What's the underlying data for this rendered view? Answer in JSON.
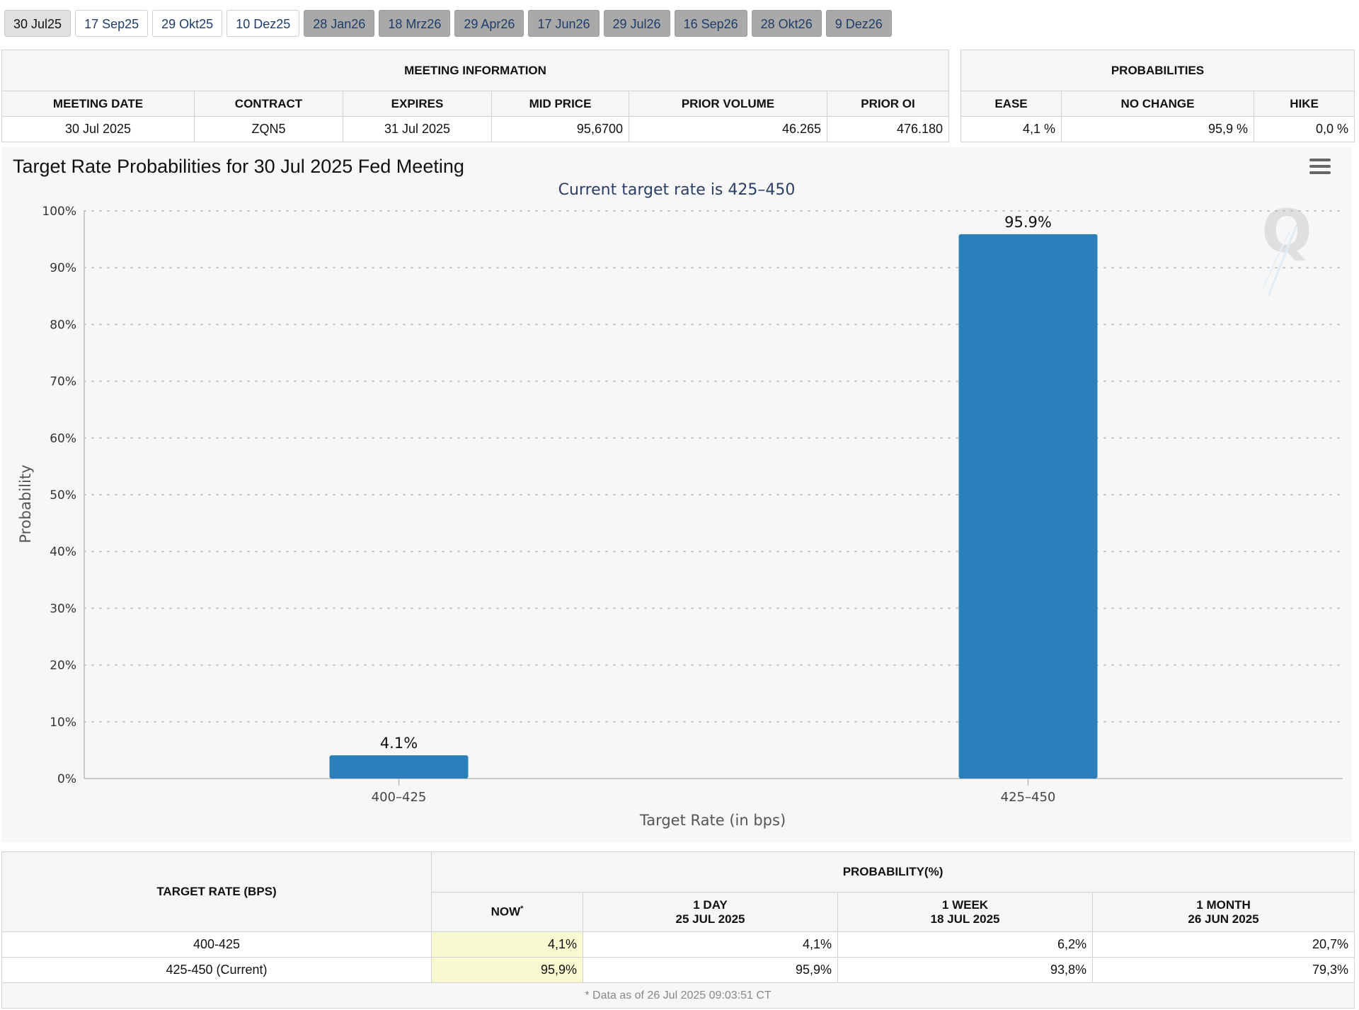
{
  "tabs": [
    {
      "label": "30 Jul25",
      "state": "active"
    },
    {
      "label": "17 Sep25",
      "state": "white"
    },
    {
      "label": "29 Okt25",
      "state": "white"
    },
    {
      "label": "10 Dez25",
      "state": "white"
    },
    {
      "label": "28 Jan26",
      "state": "grey"
    },
    {
      "label": "18 Mrz26",
      "state": "grey"
    },
    {
      "label": "29 Apr26",
      "state": "grey"
    },
    {
      "label": "17 Jun26",
      "state": "grey"
    },
    {
      "label": "29 Jul26",
      "state": "grey"
    },
    {
      "label": "16 Sep26",
      "state": "grey"
    },
    {
      "label": "28 Okt26",
      "state": "grey"
    },
    {
      "label": "9 Dez26",
      "state": "grey"
    }
  ],
  "meeting_info": {
    "header": "MEETING INFORMATION",
    "columns": [
      "MEETING DATE",
      "CONTRACT",
      "EXPIRES",
      "MID PRICE",
      "PRIOR VOLUME",
      "PRIOR OI"
    ],
    "row": [
      "30 Jul 2025",
      "ZQN5",
      "31 Jul 2025",
      "95,6700",
      "46.265",
      "476.180"
    ]
  },
  "probabilities": {
    "header": "PROBABILITIES",
    "columns": [
      "EASE",
      "NO CHANGE",
      "HIKE"
    ],
    "row": [
      "4,1 %",
      "95,9 %",
      "0,0 %"
    ]
  },
  "chart": {
    "title": "Target Rate Probabilities for 30 Jul 2025 Fed Meeting",
    "subtitle": "Current target rate is 425–450",
    "menu_icon": "hamburger-menu-icon",
    "watermark_icon": "q-logo-watermark"
  },
  "chart_data": {
    "type": "bar",
    "categories": [
      "400–425",
      "425–450"
    ],
    "values": [
      4.1,
      95.9
    ],
    "data_labels": [
      "4.1%",
      "95.9%"
    ],
    "xlabel": "Target Rate (in bps)",
    "ylabel": "Probability",
    "ylim": [
      0,
      100
    ],
    "yticks": [
      "0%",
      "10%",
      "20%",
      "30%",
      "40%",
      "50%",
      "60%",
      "70%",
      "80%",
      "90%",
      "100%"
    ],
    "bar_color": "#2a7fba",
    "grid": true
  },
  "bottom_table": {
    "col1_header": "TARGET RATE (BPS)",
    "group_header": "PROBABILITY(%)",
    "now_label": "NOW",
    "now_marker": "*",
    "day_label": "1 DAY",
    "day_date": "25 JUL 2025",
    "week_label": "1 WEEK",
    "week_date": "18 JUL 2025",
    "month_label": "1 MONTH",
    "month_date": "26 JUN 2025",
    "rows": [
      {
        "rate": "400-425",
        "now": "4,1%",
        "day": "4,1%",
        "week": "6,2%",
        "month": "20,7%"
      },
      {
        "rate": "425-450 (Current)",
        "now": "95,9%",
        "day": "95,9%",
        "week": "93,8%",
        "month": "79,3%"
      }
    ],
    "footnote": "* Data as of 26 Jul 2025 09:03:51 CT"
  }
}
